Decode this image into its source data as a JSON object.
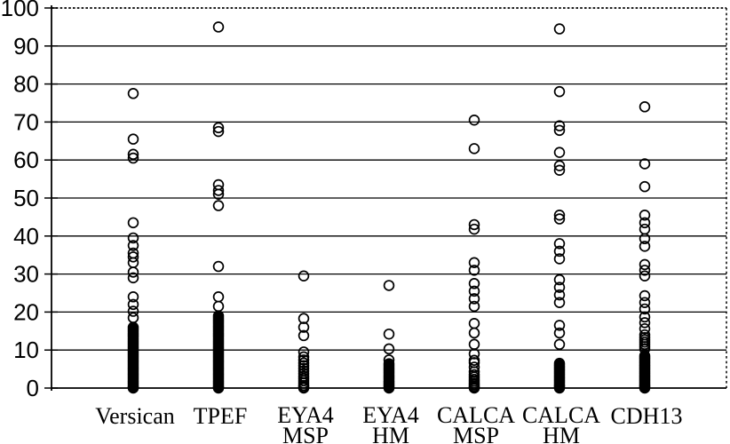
{
  "figure": {
    "description": "Scatter strip plot of percentage values per gene methylation marker",
    "background_color": "#ffffff",
    "ink_color": "#000000"
  },
  "chart_data": {
    "type": "scatter",
    "subtype": "strip-plot",
    "marker": "open-circle",
    "title": "",
    "xlabel": "",
    "ylabel": "",
    "ylim": [
      0,
      100
    ],
    "yticks": [
      0,
      10,
      20,
      30,
      40,
      50,
      60,
      70,
      80,
      90,
      100
    ],
    "grid": "horizontal solid lines every 10; top (100) border dotted; right border dotted vertical",
    "legend": "none",
    "categories": [
      "Versican",
      "TPEF",
      "EYA4 MSP",
      "EYA4 HM",
      "CALCA MSP",
      "CALCA HM",
      "CDH13"
    ],
    "columns": [
      {
        "name": "Versican",
        "label_lines": [
          "Versican"
        ],
        "values": [
          77.5,
          65.5,
          61.5,
          60.5,
          43.5,
          39.5,
          37.5,
          35.5,
          34.5,
          33,
          30.5,
          29,
          24,
          22,
          20.2,
          18.5,
          16,
          15.5,
          15,
          14.5,
          14,
          13.5,
          13,
          12.5,
          12,
          11.5,
          11,
          10.5,
          10,
          9.5,
          9,
          8.5,
          8,
          7.5,
          7,
          6.5,
          6,
          5.5,
          5,
          4.5,
          4,
          3.5,
          3,
          2.5,
          2,
          1.5,
          1,
          0.5,
          0.2,
          0
        ]
      },
      {
        "name": "TPEF",
        "label_lines": [
          "TPEF"
        ],
        "values": [
          95,
          68.5,
          67.5,
          53.5,
          52,
          51,
          48,
          32,
          24,
          21.5,
          19,
          18.5,
          18,
          17.5,
          17,
          16.5,
          16,
          15.5,
          15,
          14.5,
          14,
          13.5,
          13,
          12.5,
          12,
          11.5,
          11,
          10.5,
          10,
          9.5,
          9,
          8.5,
          8,
          7.5,
          7,
          6.5,
          6,
          5.5,
          5,
          4.5,
          4,
          3.5,
          3,
          2.5,
          2,
          1.5,
          1,
          0.5,
          0.2,
          0
        ]
      },
      {
        "name": "EYA4 MSP",
        "label_lines": [
          "EYA4",
          "MSP"
        ],
        "values": [
          29.5,
          18.3,
          16,
          13.8,
          9.5,
          8.2,
          7.4,
          6.6,
          5.9,
          5.2,
          4.5,
          3.8,
          3.1,
          2.5,
          1.9,
          1.3,
          0.7,
          0.3,
          0
        ]
      },
      {
        "name": "EYA4 HM",
        "label_lines": [
          "EYA4",
          "HM"
        ],
        "values": [
          27,
          14.2,
          10.3,
          7.4,
          6.4,
          5.9,
          5.4,
          4.9,
          4.4,
          3.9,
          3.4,
          2.9,
          2.4,
          1.9,
          1.5,
          1.1,
          0.7,
          0.3,
          0
        ]
      },
      {
        "name": "CALCA MSP",
        "label_lines": [
          "CALCA",
          "MSP"
        ],
        "values": [
          70.5,
          63,
          43,
          41.8,
          33,
          31,
          27.5,
          25.5,
          23.5,
          21.5,
          17,
          14.5,
          11.5,
          9,
          7.3,
          6.7,
          5.5,
          4.3,
          3.5,
          2.9,
          2.3,
          1.8,
          1.3,
          0.9,
          0.5,
          0.2,
          0
        ]
      },
      {
        "name": "CALCA HM",
        "label_lines": [
          "CALCA",
          "HM"
        ],
        "values": [
          94.5,
          78,
          69,
          67.8,
          62,
          58.5,
          57.3,
          45.5,
          44.5,
          38,
          36,
          34,
          28.5,
          26.5,
          24.5,
          22.5,
          16.5,
          14.5,
          11.5,
          6.5,
          6.1,
          5.7,
          5.3,
          4.9,
          4.5,
          4.1,
          3.7,
          3.3,
          2.9,
          2.5,
          2.1,
          1.7,
          1.3,
          0.9,
          0.6,
          0.3,
          0
        ]
      },
      {
        "name": "CDH13",
        "label_lines": [
          "CDH13"
        ],
        "values": [
          74,
          59,
          53,
          45.5,
          43.5,
          41.8,
          39.3,
          37.3,
          32.5,
          31,
          29.5,
          24.3,
          22.5,
          20.8,
          18.7,
          17.2,
          15.6,
          14,
          13.3,
          12.7,
          12.1,
          11.5,
          10.9,
          10.3,
          8.5,
          8.1,
          7.7,
          7.3,
          6.9,
          6.5,
          6.1,
          5.7,
          5.3,
          4.9,
          4.5,
          4.1,
          3.7,
          3.3,
          2.9,
          2.5,
          2.1,
          1.7,
          1.3,
          0.9,
          0.6,
          0.3,
          0
        ]
      }
    ]
  }
}
